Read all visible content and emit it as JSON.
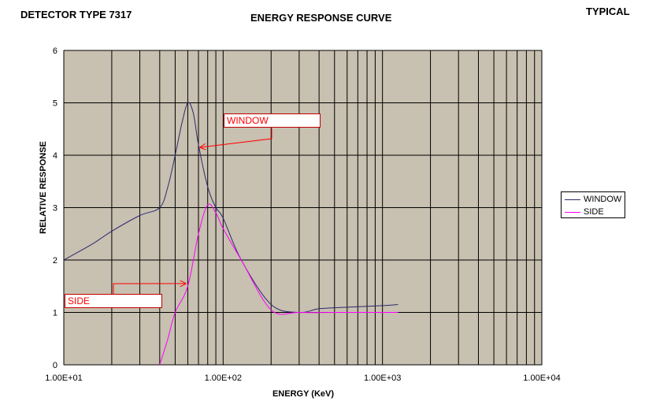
{
  "header": {
    "left": "DETECTOR TYPE 7317",
    "right": "TYPICAL"
  },
  "colors": {
    "plot_bg": "#c8c0b0",
    "grid": "#000000",
    "window": "#2a2a6e",
    "side": "#ff00ff",
    "callout": "#ff0000"
  },
  "chart_data": {
    "type": "line",
    "title": "ENERGY RESPONSE CURVE",
    "xlabel": "ENERGY (KeV)",
    "ylabel": "RELATIVE RESPONSE",
    "xscale": "log",
    "xlim": [
      10,
      10000
    ],
    "ylim": [
      0,
      6
    ],
    "x_tick_labels": [
      "1.00E+01",
      "1.00E+02",
      "1.00E+03",
      "1.00E+04"
    ],
    "x_ticks": [
      10,
      100,
      1000,
      10000
    ],
    "y_ticks": [
      0,
      1,
      2,
      3,
      4,
      5,
      6
    ],
    "grid": true,
    "legend_position": "right",
    "series": [
      {
        "name": "WINDOW",
        "x": [
          10,
          15,
          20,
          30,
          40,
          45,
          50,
          55,
          60,
          65,
          70,
          80,
          90,
          100,
          130,
          200,
          300,
          400,
          600,
          1000,
          1250
        ],
        "y": [
          2.0,
          2.3,
          2.55,
          2.85,
          3.0,
          3.4,
          4.0,
          4.6,
          5.0,
          4.8,
          4.2,
          3.4,
          3.0,
          2.8,
          2.0,
          1.15,
          1.0,
          1.07,
          1.1,
          1.13,
          1.15
        ]
      },
      {
        "name": "SIDE",
        "x": [
          40,
          45,
          50,
          60,
          70,
          80,
          90,
          100,
          130,
          200,
          300,
          500,
          1000,
          1250
        ],
        "y": [
          0,
          0.5,
          1.0,
          1.5,
          2.5,
          3.05,
          2.9,
          2.6,
          2.0,
          1.05,
          1.0,
          1.0,
          1.0,
          1.0
        ]
      }
    ],
    "annotations": [
      {
        "text": "WINDOW",
        "points_to": {
          "x": 72,
          "y": 4.15
        }
      },
      {
        "text": "SIDE",
        "points_to": {
          "x": 58,
          "y": 1.55
        }
      }
    ]
  }
}
